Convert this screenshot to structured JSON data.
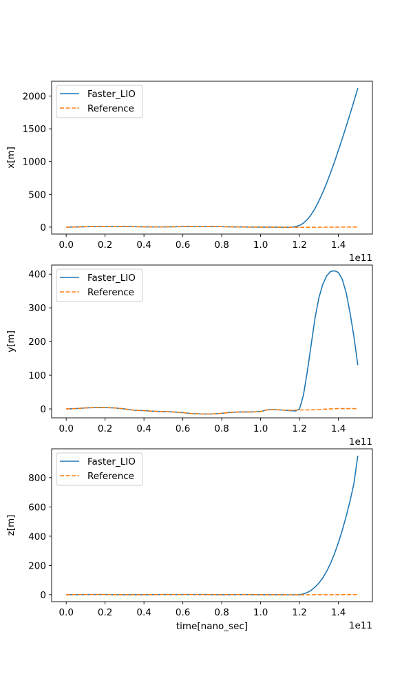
{
  "colors": {
    "faster_lio": "#1f77b4",
    "reference": "#ff7f0e",
    "axes": "#000000",
    "legend_border": "#cccccc"
  },
  "chart_data": [
    {
      "type": "line",
      "xlabel": "",
      "ylabel": "x[m]",
      "x_offset_label": "1e11",
      "xlim": [
        -0.075,
        1.575
      ],
      "ylim": [
        -106,
        2226
      ],
      "xticks": [
        0.0,
        0.2,
        0.4,
        0.6,
        0.8,
        1.0,
        1.2,
        1.4
      ],
      "xtick_labels": [
        "0.0",
        "0.2",
        "0.4",
        "0.6",
        "0.8",
        "1.0",
        "1.2",
        "1.4"
      ],
      "yticks": [
        0,
        500,
        1000,
        1500,
        2000
      ],
      "ytick_labels": [
        "0",
        "500",
        "1000",
        "1500",
        "2000"
      ],
      "grid": false,
      "legend_position": "upper-left",
      "series": [
        {
          "name": "Faster_LIO",
          "style": "solid",
          "x": [
            0.0,
            0.05,
            0.1,
            0.15,
            0.2,
            0.25,
            0.3,
            0.35,
            0.4,
            0.45,
            0.5,
            0.55,
            0.6,
            0.65,
            0.7,
            0.75,
            0.8,
            0.85,
            0.9,
            0.95,
            1.0,
            1.05,
            1.1,
            1.13,
            1.16,
            1.18,
            1.2,
            1.22,
            1.24,
            1.26,
            1.28,
            1.3,
            1.32,
            1.34,
            1.36,
            1.38,
            1.4,
            1.42,
            1.44,
            1.46,
            1.48,
            1.5
          ],
          "y": [
            0,
            2,
            6,
            10,
            12,
            12,
            10,
            7,
            4,
            3,
            3,
            5,
            8,
            11,
            12,
            10,
            7,
            4,
            2,
            1,
            0,
            0,
            -2,
            -3,
            0,
            8,
            25,
            60,
            115,
            190,
            285,
            400,
            530,
            675,
            830,
            995,
            1170,
            1350,
            1535,
            1725,
            1920,
            2120
          ]
        },
        {
          "name": "Reference",
          "style": "dashed",
          "x": [
            0.0,
            0.05,
            0.1,
            0.15,
            0.2,
            0.25,
            0.3,
            0.35,
            0.4,
            0.45,
            0.5,
            0.55,
            0.6,
            0.65,
            0.7,
            0.75,
            0.8,
            0.85,
            0.9,
            0.95,
            1.0,
            1.05,
            1.1,
            1.15,
            1.2,
            1.25,
            1.3,
            1.35,
            1.4,
            1.45,
            1.5
          ],
          "y": [
            0,
            2,
            6,
            10,
            12,
            12,
            10,
            7,
            4,
            3,
            3,
            5,
            8,
            11,
            12,
            10,
            7,
            4,
            2,
            1,
            0,
            0,
            -2,
            -3,
            -4,
            -3,
            -2,
            -1,
            0,
            1,
            1
          ]
        }
      ]
    },
    {
      "type": "line",
      "xlabel": "",
      "ylabel": "y[m]",
      "x_offset_label": "1e11",
      "xlim": [
        -0.075,
        1.575
      ],
      "ylim": [
        -26.5,
        427
      ],
      "xticks": [
        0.0,
        0.2,
        0.4,
        0.6,
        0.8,
        1.0,
        1.2,
        1.4
      ],
      "xtick_labels": [
        "0.0",
        "0.2",
        "0.4",
        "0.6",
        "0.8",
        "1.0",
        "1.2",
        "1.4"
      ],
      "yticks": [
        0,
        100,
        200,
        300,
        400
      ],
      "ytick_labels": [
        "0",
        "100",
        "200",
        "300",
        "400"
      ],
      "grid": false,
      "legend_position": "upper-left",
      "series": [
        {
          "name": "Faster_LIO",
          "style": "solid",
          "x": [
            0.0,
            0.05,
            0.1,
            0.15,
            0.2,
            0.25,
            0.3,
            0.35,
            0.4,
            0.45,
            0.5,
            0.55,
            0.6,
            0.65,
            0.7,
            0.75,
            0.8,
            0.85,
            0.9,
            0.95,
            1.0,
            1.03,
            1.06,
            1.1,
            1.15,
            1.18,
            1.2,
            1.22,
            1.24,
            1.26,
            1.28,
            1.3,
            1.32,
            1.34,
            1.36,
            1.38,
            1.4,
            1.42,
            1.44,
            1.46,
            1.48,
            1.5
          ],
          "y": [
            0,
            1,
            3,
            4,
            4,
            3,
            0,
            -4,
            -5,
            -7,
            -8,
            -9,
            -11,
            -14,
            -15,
            -15,
            -13,
            -10,
            -9,
            -9,
            -8,
            -3,
            -2,
            -3,
            -5,
            -6,
            0,
            40,
            110,
            190,
            270,
            330,
            370,
            395,
            408,
            410,
            405,
            385,
            345,
            285,
            215,
            130
          ]
        },
        {
          "name": "Reference",
          "style": "dashed",
          "x": [
            0.0,
            0.05,
            0.1,
            0.15,
            0.2,
            0.25,
            0.3,
            0.35,
            0.4,
            0.45,
            0.5,
            0.55,
            0.6,
            0.65,
            0.7,
            0.75,
            0.8,
            0.85,
            0.9,
            0.95,
            1.0,
            1.03,
            1.06,
            1.1,
            1.15,
            1.2,
            1.25,
            1.3,
            1.35,
            1.4,
            1.45,
            1.5
          ],
          "y": [
            0,
            1,
            3,
            4,
            4,
            3,
            0,
            -4,
            -5,
            -7,
            -8,
            -9,
            -11,
            -14,
            -15,
            -15,
            -13,
            -10,
            -9,
            -9,
            -8,
            -3,
            -2,
            -3,
            -4,
            -3,
            -3,
            -2,
            0,
            1,
            1,
            1
          ]
        }
      ]
    },
    {
      "type": "line",
      "xlabel": "time[nano_sec]",
      "ylabel": "z[m]",
      "x_offset_label": "1e11",
      "xlim": [
        -0.075,
        1.575
      ],
      "ylim": [
        -47.5,
        997
      ],
      "xticks": [
        0.0,
        0.2,
        0.4,
        0.6,
        0.8,
        1.0,
        1.2,
        1.4
      ],
      "xtick_labels": [
        "0.0",
        "0.2",
        "0.4",
        "0.6",
        "0.8",
        "1.0",
        "1.2",
        "1.4"
      ],
      "yticks": [
        0,
        200,
        400,
        600,
        800
      ],
      "ytick_labels": [
        "0",
        "200",
        "400",
        "600",
        "800"
      ],
      "grid": false,
      "legend_position": "upper-left",
      "series": [
        {
          "name": "Faster_LIO",
          "style": "solid",
          "x": [
            0.0,
            0.1,
            0.2,
            0.3,
            0.4,
            0.5,
            0.6,
            0.7,
            0.8,
            0.9,
            1.0,
            1.1,
            1.15,
            1.2,
            1.22,
            1.24,
            1.26,
            1.28,
            1.3,
            1.32,
            1.34,
            1.36,
            1.38,
            1.4,
            1.42,
            1.44,
            1.46,
            1.48,
            1.5
          ],
          "y": [
            0,
            1,
            1,
            0,
            0,
            1,
            1,
            1,
            0,
            1,
            0,
            0,
            -1,
            0,
            5,
            15,
            30,
            52,
            80,
            115,
            160,
            215,
            280,
            355,
            440,
            535,
            640,
            760,
            950
          ]
        },
        {
          "name": "Reference",
          "style": "dashed",
          "x": [
            0.0,
            0.1,
            0.2,
            0.3,
            0.4,
            0.5,
            0.6,
            0.7,
            0.8,
            0.9,
            1.0,
            1.1,
            1.2,
            1.3,
            1.4,
            1.5
          ],
          "y": [
            0,
            1,
            1,
            0,
            0,
            1,
            1,
            1,
            0,
            1,
            0,
            0,
            -1,
            0,
            0,
            1
          ]
        }
      ]
    }
  ]
}
